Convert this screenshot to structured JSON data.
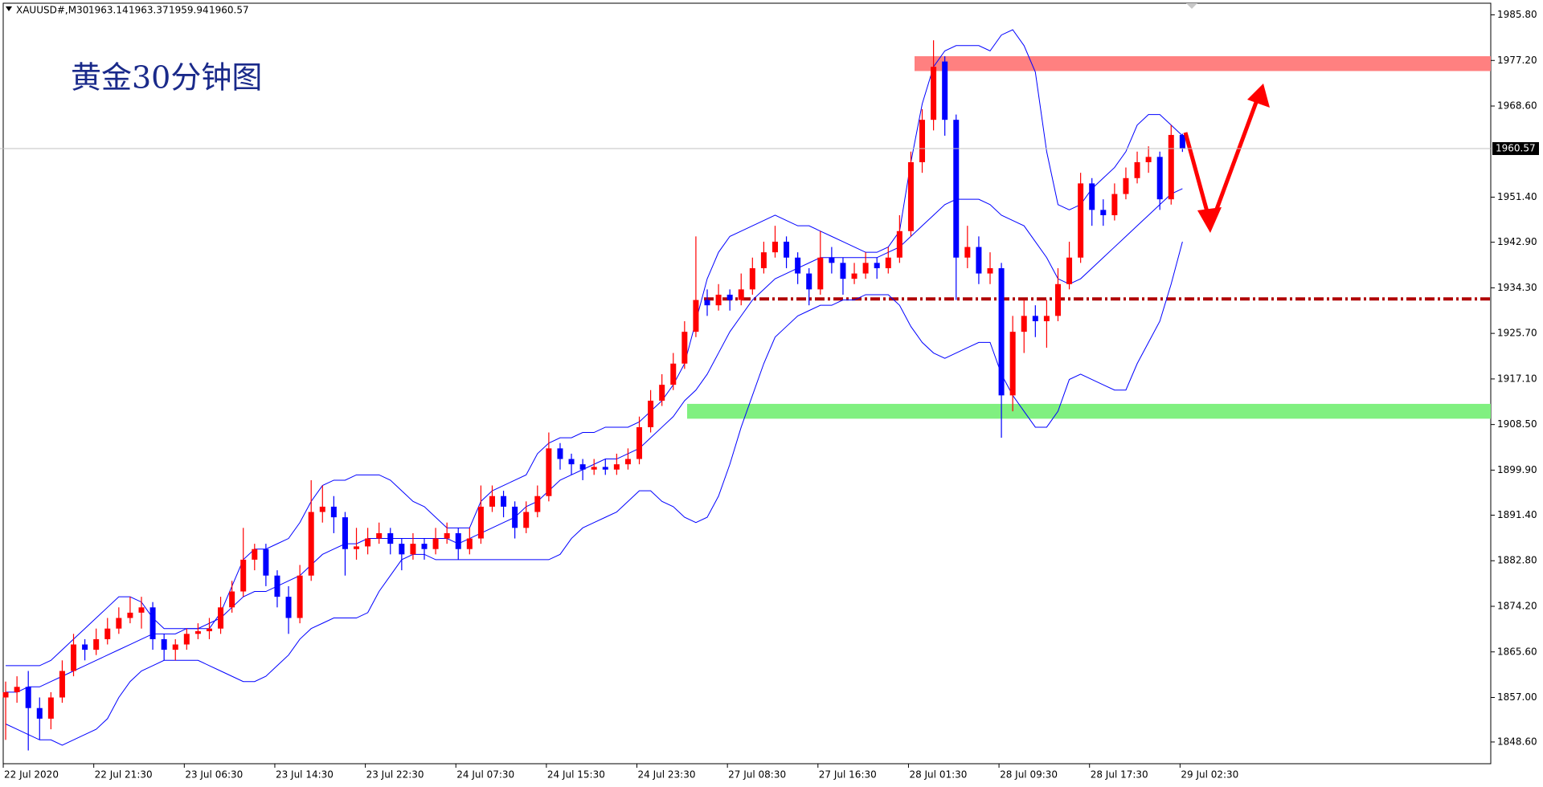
{
  "chart_data": {
    "type": "candlestick",
    "symbol": "XAUUSD#,M30",
    "annotation": "黄金30分钟图",
    "up_color": "#ff0000",
    "down_color": "#0000ff",
    "x": [
      "22 Jul 2020",
      null,
      null,
      null,
      null,
      null,
      null,
      null,
      "22 Jul 21:30",
      null,
      null,
      null,
      null,
      null,
      null,
      null,
      "23 Jul 06:30",
      null,
      null,
      null,
      null,
      null,
      null,
      null,
      "23 Jul 14:30",
      null,
      null,
      null,
      null,
      null,
      null,
      null,
      "23 Jul 22:30",
      null,
      null,
      null,
      null,
      null,
      null,
      null,
      "24 Jul 07:30",
      null,
      null,
      null,
      null,
      null,
      null,
      null,
      "24 Jul 15:30",
      null,
      null,
      null,
      null,
      null,
      null,
      null,
      "24 Jul 23:30",
      null,
      null,
      null,
      null,
      null,
      null,
      null,
      "27 Jul 08:30",
      null,
      null,
      null,
      null,
      null,
      null,
      null,
      "27 Jul 16:30",
      null,
      null,
      null,
      null,
      null,
      null,
      null,
      "28 Jul 01:30",
      null,
      null,
      null,
      null,
      null,
      null,
      null,
      "28 Jul 09:30",
      null,
      null,
      null,
      null,
      null,
      null,
      null,
      "28 Jul 17:30",
      null,
      null,
      null,
      null,
      null,
      null,
      null,
      "29 Jul 02:30"
    ],
    "candles": [
      [
        1857,
        1860,
        1849,
        1858
      ],
      [
        1858,
        1861,
        1856,
        1859
      ],
      [
        1859,
        1862,
        1847,
        1855
      ],
      [
        1855,
        1857,
        1849,
        1853
      ],
      [
        1853,
        1858,
        1851,
        1857
      ],
      [
        1857,
        1864,
        1856,
        1862
      ],
      [
        1862,
        1869,
        1861,
        1867
      ],
      [
        1867,
        1868,
        1864,
        1866
      ],
      [
        1866,
        1870,
        1865,
        1868
      ],
      [
        1868,
        1872,
        1867,
        1870
      ],
      [
        1870,
        1874,
        1869,
        1872
      ],
      [
        1872,
        1876,
        1871,
        1873
      ],
      [
        1873,
        1876,
        1870,
        1874
      ],
      [
        1874,
        1875,
        1866,
        1868
      ],
      [
        1868,
        1869,
        1864,
        1866
      ],
      [
        1866,
        1868,
        1864,
        1867
      ],
      [
        1867,
        1870,
        1866,
        1869
      ],
      [
        1869,
        1871,
        1868,
        1869.5
      ],
      [
        1869.5,
        1872,
        1868,
        1870
      ],
      [
        1870,
        1876,
        1869,
        1874
      ],
      [
        1874,
        1879,
        1873,
        1877
      ],
      [
        1877,
        1889,
        1876,
        1883
      ],
      [
        1883,
        1886,
        1881,
        1885
      ],
      [
        1885,
        1886,
        1878,
        1880
      ],
      [
        1880,
        1881,
        1874,
        1876
      ],
      [
        1876,
        1878,
        1869,
        1872
      ],
      [
        1872,
        1882,
        1871,
        1880
      ],
      [
        1880,
        1898,
        1879,
        1892
      ],
      [
        1892,
        1897,
        1890,
        1893
      ],
      [
        1893,
        1895,
        1888,
        1891
      ],
      [
        1891,
        1892,
        1880,
        1885
      ],
      [
        1885,
        1889,
        1883,
        1885.5
      ],
      [
        1885.5,
        1889,
        1884,
        1887
      ],
      [
        1887,
        1890,
        1886,
        1888
      ],
      [
        1888,
        1889,
        1884,
        1886
      ],
      [
        1886,
        1887,
        1881,
        1884
      ],
      [
        1884,
        1888,
        1883,
        1886
      ],
      [
        1886,
        1887,
        1883,
        1885
      ],
      [
        1885,
        1889,
        1884,
        1887
      ],
      [
        1887,
        1890,
        1886,
        1888
      ],
      [
        1888,
        1889,
        1883,
        1885
      ],
      [
        1885,
        1889,
        1884,
        1887
      ],
      [
        1887,
        1897,
        1886,
        1893
      ],
      [
        1893,
        1897,
        1892,
        1895
      ],
      [
        1895,
        1896,
        1891,
        1893
      ],
      [
        1893,
        1894,
        1887,
        1889
      ],
      [
        1889,
        1894,
        1888,
        1892
      ],
      [
        1892,
        1897,
        1891,
        1895
      ],
      [
        1895,
        1907,
        1894,
        1904
      ],
      [
        1904,
        1905,
        1900,
        1902
      ],
      [
        1902,
        1903,
        1899,
        1901
      ],
      [
        1901,
        1902,
        1898,
        1900
      ],
      [
        1900,
        1902,
        1899,
        1900.5
      ],
      [
        1900.5,
        1902,
        1899,
        1900
      ],
      [
        1900,
        1903,
        1899,
        1901
      ],
      [
        1901,
        1904,
        1900,
        1902
      ],
      [
        1902,
        1910,
        1901,
        1908
      ],
      [
        1908,
        1915,
        1907,
        1913
      ],
      [
        1913,
        1918,
        1912,
        1916
      ],
      [
        1916,
        1922,
        1915,
        1920
      ],
      [
        1920,
        1928,
        1919,
        1926
      ],
      [
        1926,
        1944,
        1925,
        1932
      ],
      [
        1932,
        1934,
        1929,
        1931
      ],
      [
        1931,
        1935,
        1930,
        1933
      ],
      [
        1933,
        1934,
        1930,
        1932
      ],
      [
        1932,
        1937,
        1931,
        1934
      ],
      [
        1934,
        1940,
        1933,
        1938
      ],
      [
        1938,
        1943,
        1937,
        1941
      ],
      [
        1941,
        1946,
        1940,
        1943
      ],
      [
        1943,
        1944,
        1938,
        1940
      ],
      [
        1940,
        1941,
        1935,
        1937
      ],
      [
        1937,
        1938,
        1931,
        1934
      ],
      [
        1934,
        1945,
        1933,
        1940
      ],
      [
        1940,
        1942,
        1937,
        1939
      ],
      [
        1939,
        1940,
        1933,
        1936
      ],
      [
        1936,
        1939,
        1935,
        1937
      ],
      [
        1937,
        1941,
        1936,
        1939
      ],
      [
        1939,
        1940,
        1936,
        1938
      ],
      [
        1938,
        1942,
        1937,
        1940
      ],
      [
        1940,
        1948,
        1939,
        1945
      ],
      [
        1945,
        1960,
        1944,
        1958
      ],
      [
        1958,
        1968,
        1956,
        1966
      ],
      [
        1966,
        1981,
        1964,
        1976
      ],
      [
        1977,
        1978,
        1963,
        1966
      ],
      [
        1966,
        1967,
        1932,
        1940
      ],
      [
        1940,
        1946,
        1938,
        1942
      ],
      [
        1942,
        1944,
        1935,
        1937
      ],
      [
        1937,
        1941,
        1935,
        1938
      ],
      [
        1938,
        1939,
        1906,
        1914
      ],
      [
        1914,
        1929,
        1911,
        1926
      ],
      [
        1926,
        1932,
        1922,
        1929
      ],
      [
        1929,
        1931,
        1925,
        1928
      ],
      [
        1928,
        1932,
        1923,
        1929
      ],
      [
        1929,
        1938,
        1928,
        1935
      ],
      [
        1935,
        1943,
        1934,
        1940
      ],
      [
        1940,
        1956,
        1939,
        1954
      ],
      [
        1954,
        1955,
        1946,
        1949
      ],
      [
        1949,
        1951,
        1946,
        1948
      ],
      [
        1948,
        1954,
        1947,
        1952
      ],
      [
        1952,
        1957,
        1951,
        1955
      ],
      [
        1955,
        1960,
        1954,
        1958
      ],
      [
        1958,
        1961,
        1956,
        1959
      ],
      [
        1959,
        1960,
        1949,
        1951
      ],
      [
        1951,
        1965,
        1950,
        1963.14
      ],
      [
        1963.14,
        1963.37,
        1959.94,
        1960.57
      ]
    ],
    "bands": [
      {
        "color": "#0000ff",
        "values": [
          1863,
          1863,
          1863,
          1863,
          1864,
          1866,
          1868,
          1870,
          1872,
          1874,
          1876,
          1876,
          1875,
          1872,
          1870,
          1870,
          1870,
          1870,
          1870,
          1873,
          1878,
          1883,
          1885,
          1885,
          1886,
          1887,
          1890,
          1894,
          1897,
          1898,
          1898,
          1899,
          1899,
          1899,
          1898,
          1896,
          1894,
          1893,
          1891,
          1889,
          1889,
          1889,
          1894,
          1896,
          1897,
          1898,
          1899,
          1903,
          1905,
          1906,
          1906,
          1907,
          1907,
          1908,
          1908,
          1908,
          1909,
          1911,
          1913,
          1916,
          1920,
          1928,
          1936,
          1941,
          1944,
          1945,
          1946,
          1947,
          1948,
          1947,
          1946,
          1946,
          1945,
          1944,
          1943,
          1942,
          1941,
          1941,
          1942,
          1945,
          1958,
          1969,
          1976,
          1979,
          1980,
          1980,
          1980,
          1979,
          1982,
          1983,
          1980,
          1975,
          1960,
          1950,
          1949,
          1950,
          1953,
          1955,
          1957,
          1960,
          1965,
          1967,
          1967,
          1965,
          1963
        ]
      },
      {
        "color": "#0000ff",
        "values": [
          1858,
          1858,
          1859,
          1859,
          1860,
          1861,
          1862,
          1863,
          1864,
          1865,
          1866,
          1867,
          1868,
          1869,
          1869,
          1869,
          1870,
          1870,
          1871,
          1872,
          1874,
          1876,
          1877,
          1877,
          1878,
          1879,
          1880,
          1882,
          1884,
          1885,
          1886,
          1886,
          1887,
          1887,
          1887,
          1887,
          1887,
          1887,
          1887,
          1887,
          1886,
          1887,
          1888,
          1889,
          1890,
          1891,
          1893,
          1894,
          1896,
          1898,
          1899,
          1900,
          1901,
          1902,
          1902,
          1903,
          1904,
          1906,
          1908,
          1910,
          1913,
          1915,
          1918,
          1922,
          1926,
          1929,
          1932,
          1934,
          1936,
          1937,
          1938,
          1939,
          1940,
          1940,
          1940,
          1940,
          1940,
          1940,
          1941,
          1942,
          1944,
          1946,
          1948,
          1950,
          1951,
          1951,
          1951,
          1950,
          1948,
          1947,
          1946,
          1943,
          1940,
          1936,
          1935,
          1936,
          1938,
          1940,
          1942,
          1944,
          1946,
          1948,
          1950,
          1952,
          1953
        ]
      },
      {
        "color": "#0000ff",
        "values": [
          1852,
          1851,
          1850,
          1849,
          1849,
          1848,
          1849,
          1850,
          1851,
          1853,
          1857,
          1860,
          1862,
          1863,
          1864,
          1864,
          1864,
          1864,
          1863,
          1862,
          1861,
          1860,
          1860,
          1861,
          1863,
          1865,
          1868,
          1870,
          1871,
          1872,
          1872,
          1872,
          1873,
          1877,
          1880,
          1883,
          1884,
          1884,
          1883,
          1883,
          1883,
          1883,
          1883,
          1883,
          1883,
          1883,
          1883,
          1883,
          1883,
          1884,
          1887,
          1889,
          1890,
          1891,
          1892,
          1894,
          1896,
          1896,
          1894,
          1893,
          1891,
          1890,
          1891,
          1895,
          1901,
          1908,
          1914,
          1920,
          1925,
          1927,
          1929,
          1930,
          1931,
          1931,
          1932,
          1932,
          1933,
          1933,
          1933,
          1931,
          1927,
          1924,
          1922,
          1921,
          1922,
          1923,
          1924,
          1924,
          1918,
          1914,
          1911,
          1908,
          1908,
          1911,
          1917,
          1918,
          1917,
          1916,
          1915,
          1915,
          1920,
          1924,
          1928,
          1935,
          1943
        ]
      }
    ],
    "resistance_zone": {
      "ylim": [
        1975.2,
        1978.0
      ],
      "color": "#ff8080"
    },
    "support_zone": {
      "ylim": [
        1909.6,
        1912.4
      ],
      "color": "#80f080"
    },
    "level_line": {
      "value": 1932.2,
      "color": "#b00000"
    },
    "ylim": [
      1844.5,
      1988.0
    ],
    "yticks": [
      {
        "value": 1848.6,
        "label": "1848.60"
      },
      {
        "value": 1857.0,
        "label": "1857.00"
      },
      {
        "value": 1865.6,
        "label": "1865.60"
      },
      {
        "value": 1874.2,
        "label": "1874.20"
      },
      {
        "value": 1882.8,
        "label": "1882.80"
      },
      {
        "value": 1891.4,
        "label": "1891.40"
      },
      {
        "value": 1899.9,
        "label": "1899.90"
      },
      {
        "value": 1908.5,
        "label": "1908.50"
      },
      {
        "value": 1917.1,
        "label": "1917.10"
      },
      {
        "value": 1925.7,
        "label": "1925.70"
      },
      {
        "value": 1934.3,
        "label": "1934.30"
      },
      {
        "value": 1942.9,
        "label": "1942.90"
      },
      {
        "value": 1951.4,
        "label": "1951.40"
      },
      {
        "value": 1968.6,
        "label": "1968.60"
      },
      {
        "value": 1977.2,
        "label": "1977.20"
      },
      {
        "value": 1985.8,
        "label": "1985.80"
      }
    ],
    "grid": false
  }
}
